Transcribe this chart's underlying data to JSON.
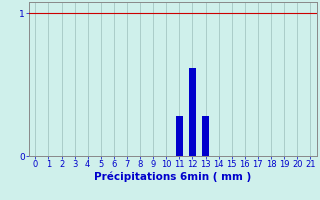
{
  "title": "",
  "xlabel": "Précipitations 6min ( mm )",
  "ylabel": "",
  "xlim": [
    -0.5,
    21.5
  ],
  "ylim": [
    0,
    1.08
  ],
  "x_values": [
    0,
    1,
    2,
    3,
    4,
    5,
    6,
    7,
    8,
    9,
    10,
    11,
    12,
    13,
    14,
    15,
    16,
    17,
    18,
    19,
    20,
    21
  ],
  "bar_values": [
    0,
    0,
    0,
    0,
    0,
    0,
    0,
    0,
    0,
    0,
    0,
    0.28,
    0.62,
    0.28,
    0,
    0,
    0,
    0,
    0,
    0,
    0,
    0
  ],
  "bar_color": "#0000cc",
  "background_color": "#cff0eb",
  "grid_color": "#aaccc8",
  "yticks": [
    0,
    1
  ],
  "hline_y": 1.0,
  "hline_color": "#cc0000",
  "hline_style": "-",
  "bar_width": 0.55,
  "xlabel_fontsize": 7.5,
  "tick_fontsize": 6.5,
  "ytick_color": "#0000cc",
  "xtick_color": "#0000cc",
  "axis_label_color": "#0000cc",
  "spine_color": "#888888"
}
